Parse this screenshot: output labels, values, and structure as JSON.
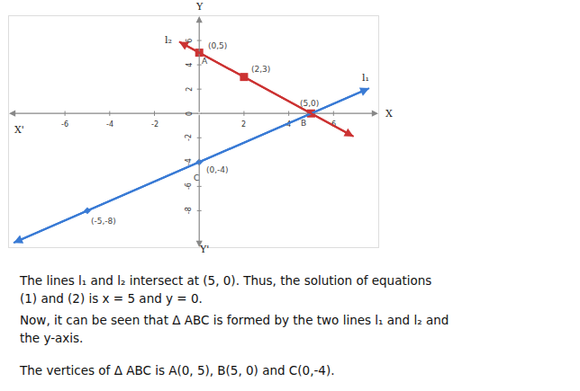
{
  "chart_data": {
    "type": "line",
    "xlim": [
      -8.5,
      8
    ],
    "ylim": [
      -11,
      8
    ],
    "xticks": [
      -6,
      -4,
      -2,
      2,
      4,
      6
    ],
    "yticks": [
      -8,
      -6,
      -4,
      -2,
      0,
      2,
      4,
      6
    ],
    "grid": false,
    "axis_labels": {
      "x": "X",
      "x_neg": "X'",
      "y": "Y",
      "y_neg": "Y'"
    },
    "series": [
      {
        "name": "l₁",
        "color": "#3a7bd5",
        "marker": "diamond",
        "line_style": "solid",
        "x": [
          -8.3,
          7.6
        ],
        "values": [
          -10.64,
          2.08
        ]
      },
      {
        "name": "l₂",
        "color": "#cc3333",
        "marker": "square",
        "line_style": "solid",
        "x": [
          -0.9,
          6.9
        ],
        "values": [
          5.9,
          -1.9
        ]
      }
    ],
    "points": [
      {
        "series": "l₂",
        "x": 0,
        "y": 5,
        "label": "(0,5)",
        "vertex": "A"
      },
      {
        "series": "l₂",
        "x": 2,
        "y": 3,
        "label": "(2,3)"
      },
      {
        "series": "l₂",
        "x": 5,
        "y": 0,
        "label": "(5,0)",
        "vertex": "B"
      },
      {
        "series": "l₁",
        "x": 0,
        "y": -4,
        "label": "(0,-4)",
        "vertex": "C"
      },
      {
        "series": "l₁",
        "x": -5,
        "y": -8,
        "label": "(-5,-8)"
      }
    ]
  },
  "text": {
    "paragraphs": [
      [
        "The lines l₁ and l₂ intersect at (5, 0). Thus, the solution of equations",
        "(1) and (2) is x = 5 and y = 0."
      ],
      [
        "Now, it can be seen that Δ ABC is formed by the two lines l₁ and l₂ and",
        "the y-axis."
      ],
      [
        "The vertices of Δ ABC is A(0, 5), B(5, 0) and C(0,-4)."
      ]
    ]
  }
}
